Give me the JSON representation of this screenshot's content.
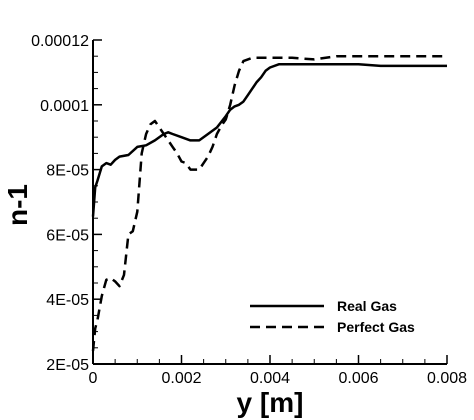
{
  "chart_data": {
    "type": "line",
    "title": "",
    "xlabel": "y [m]",
    "ylabel": "n-1",
    "xlim": [
      0,
      0.008
    ],
    "ylim": [
      2e-05,
      0.00012
    ],
    "xticks": [
      0,
      0.002,
      0.004,
      0.006,
      0.008
    ],
    "xtick_labels": [
      "0",
      "0.002",
      "0.004",
      "0.006",
      "0.008"
    ],
    "yticks": [
      2e-05,
      4e-05,
      6e-05,
      8e-05,
      0.0001,
      0.00012
    ],
    "ytick_labels": [
      "2E-05",
      "4E-05",
      "6E-05",
      "8E-05",
      "0.0001",
      "0.00012"
    ],
    "grid": false,
    "legend_position": "bottom-right",
    "series": [
      {
        "name": "Real Gas",
        "style": "solid",
        "color": "#000000",
        "x": [
          0,
          5e-05,
          0.0001,
          0.0002,
          0.0003,
          0.0004,
          0.0005,
          0.0006,
          0.0008,
          0.001,
          0.0012,
          0.0014,
          0.0016,
          0.0017,
          0.0018,
          0.002,
          0.0022,
          0.0024,
          0.0026,
          0.0028,
          0.003,
          0.0031,
          0.0032,
          0.0033,
          0.0034,
          0.0035,
          0.0036,
          0.0037,
          0.0038,
          0.0039,
          0.004,
          0.0042,
          0.0045,
          0.005,
          0.0055,
          0.006,
          0.0065,
          0.007,
          0.0075,
          0.008
        ],
        "y": [
          6.55e-05,
          7.45e-05,
          7.65e-05,
          8.1e-05,
          8.2e-05,
          8.15e-05,
          8.3e-05,
          8.4e-05,
          8.45e-05,
          8.7e-05,
          8.75e-05,
          8.9e-05,
          9.1e-05,
          9.15e-05,
          9.1e-05,
          9e-05,
          8.9e-05,
          8.9e-05,
          9.1e-05,
          9.3e-05,
          9.65e-05,
          9.85e-05,
          9.95e-05,
          0.0001,
          0.000101,
          0.000103,
          0.000105,
          0.000107,
          0.0001085,
          0.0001105,
          0.0001115,
          0.0001125,
          0.0001125,
          0.0001125,
          0.0001125,
          0.0001125,
          0.000112,
          0.000112,
          0.000112,
          0.000112
        ]
      },
      {
        "name": "Perfect Gas",
        "style": "dashed",
        "color": "#000000",
        "x": [
          0,
          5e-05,
          0.0001,
          0.0002,
          0.0003,
          0.0004,
          0.0005,
          0.0006,
          0.0007,
          0.0008,
          0.0009,
          0.001,
          0.0011,
          0.0012,
          0.0013,
          0.0014,
          0.0015,
          0.0016,
          0.0017,
          0.0018,
          0.0019,
          0.002,
          0.0021,
          0.0022,
          0.0023,
          0.0024,
          0.0025,
          0.0026,
          0.0027,
          0.0028,
          0.0029,
          0.003,
          0.0031,
          0.0032,
          0.0033,
          0.0034,
          0.0035,
          0.0036,
          0.004,
          0.0045,
          0.005,
          0.0055,
          0.006,
          0.007,
          0.008
        ],
        "y": [
          2.4e-05,
          3.1e-05,
          3.35e-05,
          4.1e-05,
          4.6e-05,
          4.65e-05,
          4.55e-05,
          4.4e-05,
          4.75e-05,
          6e-05,
          6.1e-05,
          6.7e-05,
          8.5e-05,
          9.1e-05,
          9.4e-05,
          9.5e-05,
          9.3e-05,
          9.1e-05,
          8.9e-05,
          8.7e-05,
          8.5e-05,
          8.25e-05,
          8.2e-05,
          8e-05,
          8e-05,
          8e-05,
          8.2e-05,
          8.4e-05,
          8.7e-05,
          9.1e-05,
          9.35e-05,
          9.55e-05,
          0.0001,
          0.000106,
          0.0001105,
          0.0001135,
          0.000114,
          0.0001145,
          0.0001145,
          0.0001145,
          0.000114,
          0.000115,
          0.000115,
          0.000115,
          0.000115
        ]
      }
    ]
  }
}
